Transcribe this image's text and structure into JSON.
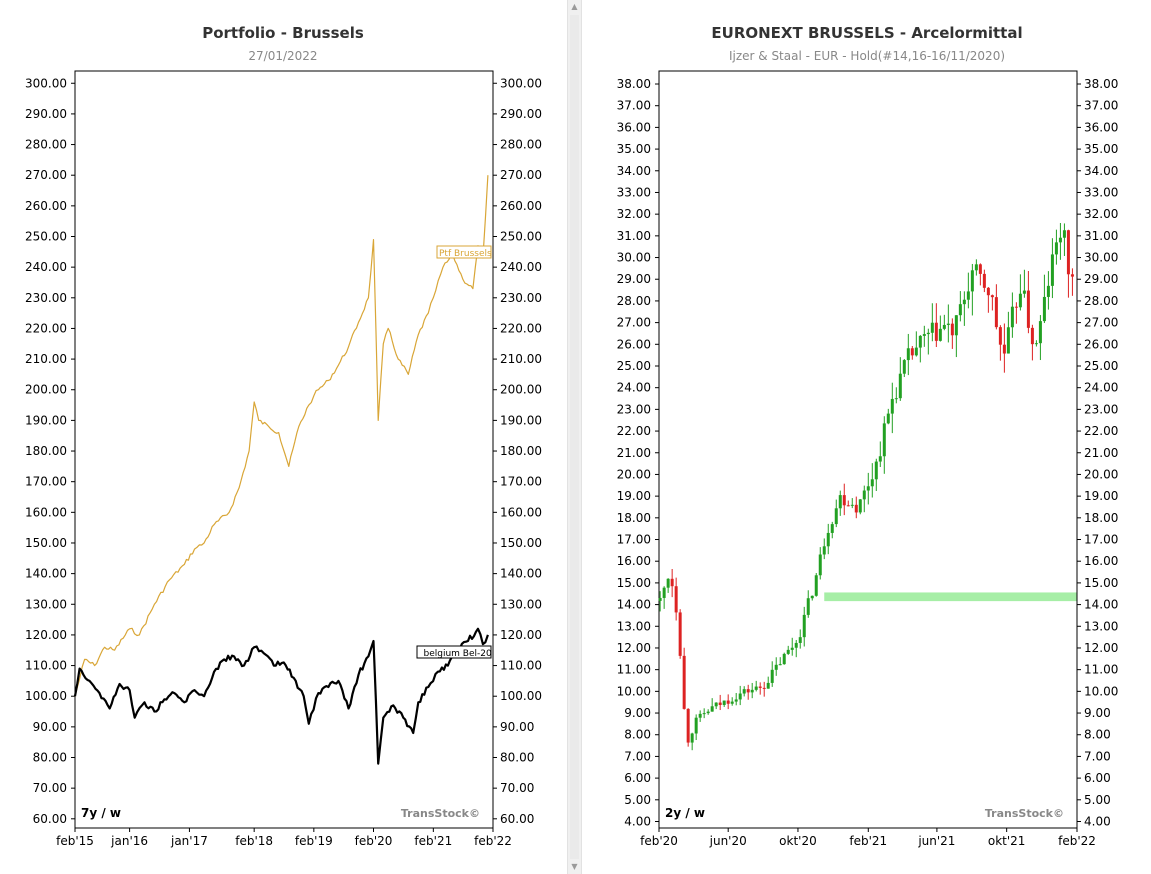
{
  "left_chart": {
    "title": "Portfolio - Brussels",
    "subtitle": "27/01/2022",
    "period_label": "7y  /  w",
    "watermark": "TransStock©",
    "portfolio_tag": "Ptf Brussels",
    "index_tag": "_belgium Bel-20"
  },
  "right_chart": {
    "title": "EURONEXT BRUSSELS - Arcelormittal",
    "subtitle": "Ijzer & Staal - EUR - Hold(#14,16-16/11/2020)",
    "period_label": "2y  /  w",
    "watermark": "TransStock©"
  },
  "colors": {
    "portfolio_line": "#d9a637",
    "index_line": "#000000",
    "candle_up": "#22a022",
    "candle_down": "#dd2222",
    "support_band": "#a6eea6"
  },
  "chart_data": [
    {
      "type": "line",
      "title": "Portfolio - Brussels",
      "subtitle": "27/01/2022",
      "xlabel": "",
      "ylabel": "",
      "x_ticks": [
        "feb'15",
        "jan'16",
        "jan'17",
        "feb'18",
        "feb'19",
        "feb'20",
        "feb'21",
        "feb'22"
      ],
      "xlim": [
        "2015-02",
        "2022-02"
      ],
      "ylim": [
        57,
        304
      ],
      "y_ticks": [
        60,
        70,
        80,
        90,
        100,
        110,
        120,
        130,
        140,
        150,
        160,
        170,
        180,
        190,
        200,
        210,
        220,
        230,
        240,
        250,
        260,
        270,
        280,
        290,
        300
      ],
      "y_tick_decimals": 2,
      "grid": false,
      "series": [
        {
          "name": "Ptf Brussels",
          "x": [
            "2015-02",
            "2015-04",
            "2015-06",
            "2015-08",
            "2015-10",
            "2016-01",
            "2016-03",
            "2016-06",
            "2016-09",
            "2016-12",
            "2017-02",
            "2017-04",
            "2017-06",
            "2017-09",
            "2017-11",
            "2018-01",
            "2018-02",
            "2018-03",
            "2018-05",
            "2018-07",
            "2018-09",
            "2018-11",
            "2019-01",
            "2019-02",
            "2019-03",
            "2019-05",
            "2019-07",
            "2019-09",
            "2019-11",
            "2020-01",
            "2020-02",
            "2020-03",
            "2020-04",
            "2020-05",
            "2020-07",
            "2020-09",
            "2020-11",
            "2021-01",
            "2021-02",
            "2021-04",
            "2021-06",
            "2021-08",
            "2021-10",
            "2021-11",
            "2021-12",
            "2022-01"
          ],
          "values": [
            100,
            112,
            110,
            116,
            115,
            122,
            120,
            130,
            138,
            143,
            148,
            150,
            156,
            160,
            168,
            180,
            196,
            190,
            188,
            186,
            175,
            188,
            195,
            198,
            200,
            203,
            208,
            214,
            222,
            230,
            249,
            190,
            215,
            220,
            210,
            205,
            218,
            225,
            230,
            240,
            244,
            236,
            233,
            247,
            243,
            270
          ]
        },
        {
          "name": "_belgium Bel-20",
          "x": [
            "2015-02",
            "2015-03",
            "2015-05",
            "2015-07",
            "2015-09",
            "2015-11",
            "2016-01",
            "2016-02",
            "2016-04",
            "2016-06",
            "2016-08",
            "2016-10",
            "2016-12",
            "2017-02",
            "2017-04",
            "2017-06",
            "2017-08",
            "2017-10",
            "2017-12",
            "2018-02",
            "2018-04",
            "2018-06",
            "2018-08",
            "2018-10",
            "2018-12",
            "2019-01",
            "2019-03",
            "2019-05",
            "2019-07",
            "2019-09",
            "2019-11",
            "2020-01",
            "2020-02",
            "2020-03",
            "2020-04",
            "2020-06",
            "2020-08",
            "2020-10",
            "2020-11",
            "2021-01",
            "2021-03",
            "2021-05",
            "2021-07",
            "2021-09",
            "2021-11",
            "2021-12",
            "2022-01"
          ],
          "values": [
            100,
            109,
            105,
            101,
            96,
            104,
            102,
            93,
            98,
            95,
            99,
            101,
            98,
            102,
            100,
            108,
            112,
            113,
            110,
            116,
            114,
            110,
            111,
            106,
            100,
            91,
            101,
            103,
            105,
            96,
            107,
            113,
            118,
            78,
            93,
            97,
            93,
            88,
            98,
            103,
            108,
            110,
            116,
            118,
            122,
            117,
            120
          ]
        }
      ]
    },
    {
      "type": "candlestick",
      "title": "EURONEXT BRUSSELS - Arcelormittal",
      "subtitle": "Ijzer & Staal - EUR - Hold(#14,16-16/11/2020)",
      "xlabel": "",
      "ylabel": "",
      "x_ticks": [
        "feb'20",
        "jun'20",
        "okt'20",
        "feb'21",
        "jun'21",
        "okt'21",
        "feb'22"
      ],
      "xlim": [
        "2020-02",
        "2022-02"
      ],
      "ylim": [
        3.7,
        38.6
      ],
      "y_ticks": [
        4,
        5,
        6,
        7,
        8,
        9,
        10,
        11,
        12,
        13,
        14,
        15,
        16,
        17,
        18,
        19,
        20,
        21,
        22,
        23,
        24,
        25,
        26,
        27,
        28,
        29,
        30,
        31,
        32,
        33,
        34,
        35,
        36,
        37,
        38
      ],
      "y_tick_decimals": 2,
      "grid": false,
      "support_band": [
        14.16,
        14.56
      ],
      "ohlc_knots": [
        [
          "2020-02-01",
          14.0
        ],
        [
          "2020-02-20",
          15.6
        ],
        [
          "2020-03-05",
          13.4
        ],
        [
          "2020-03-20",
          7.6
        ],
        [
          "2020-04-05",
          8.6
        ],
        [
          "2020-05-01",
          9.2
        ],
        [
          "2020-06-01",
          9.6
        ],
        [
          "2020-07-01",
          10.0
        ],
        [
          "2020-08-01",
          10.2
        ],
        [
          "2020-09-01",
          11.4
        ],
        [
          "2020-10-01",
          12.4
        ],
        [
          "2020-11-01",
          15.2
        ],
        [
          "2020-11-20",
          17.4
        ],
        [
          "2020-12-15",
          19.0
        ],
        [
          "2021-01-15",
          18.5
        ],
        [
          "2021-02-15",
          20.5
        ],
        [
          "2021-03-15",
          23.5
        ],
        [
          "2021-04-15",
          25.5
        ],
        [
          "2021-05-15",
          26.3
        ],
        [
          "2021-06-15",
          26.8
        ],
        [
          "2021-07-01",
          26.5
        ],
        [
          "2021-08-01",
          29.3
        ],
        [
          "2021-09-01",
          28.5
        ],
        [
          "2021-09-25",
          25.3
        ],
        [
          "2021-10-25",
          28.8
        ],
        [
          "2021-11-20",
          25.6
        ],
        [
          "2021-12-15",
          29.2
        ],
        [
          "2022-01-05",
          31.5
        ],
        [
          "2022-01-20",
          29.0
        ]
      ]
    }
  ]
}
